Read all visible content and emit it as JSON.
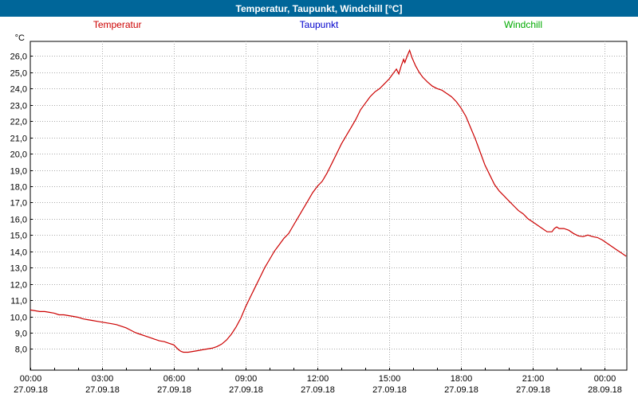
{
  "colors": {
    "titlebar_bg": "#006699",
    "grid": "#aaaaaa",
    "frame": "#000000",
    "plot_bg": "#ffffff"
  },
  "title_bar": {
    "title": "Temperatur, Taupunkt, Windchill [°C]"
  },
  "legend": [
    {
      "label": "Temperatur",
      "color": "#cc0000"
    },
    {
      "label": "Taupunkt",
      "color": "#0000cc"
    },
    {
      "label": "Windchill",
      "color": "#00aa00"
    }
  ],
  "chart_data": {
    "type": "line",
    "title": "Temperatur, Taupunkt, Windchill [°C]",
    "xlabel": "",
    "ylabel": "°C",
    "ylim": [
      6.7,
      26.9
    ],
    "xlim_hours": [
      0,
      24.93
    ],
    "grid": true,
    "legend_position": "top",
    "y_tick_labels": [
      "26,0",
      "25,0",
      "24,0",
      "23,0",
      "22,0",
      "21,0",
      "20,0",
      "19,0",
      "18,0",
      "17,0",
      "16,0",
      "15,0",
      "14,0",
      "13,0",
      "12,0",
      "11,0",
      "10,0",
      "9,0",
      "8,0"
    ],
    "x_ticks": [
      {
        "hour": 0,
        "time": "00:00",
        "date": "27.09.18"
      },
      {
        "hour": 3,
        "time": "03:00",
        "date": "27.09.18"
      },
      {
        "hour": 6,
        "time": "06:00",
        "date": "27.09.18"
      },
      {
        "hour": 9,
        "time": "09:00",
        "date": "27.09.18"
      },
      {
        "hour": 12,
        "time": "12:00",
        "date": "27.09.18"
      },
      {
        "hour": 15,
        "time": "15:00",
        "date": "27.09.18"
      },
      {
        "hour": 18,
        "time": "18:00",
        "date": "27.09.18"
      },
      {
        "hour": 21,
        "time": "21:00",
        "date": "27.09.18"
      },
      {
        "hour": 24,
        "time": "00:00",
        "date": "28.09.18"
      }
    ],
    "series": [
      {
        "name": "Temperatur",
        "color": "#cc0000",
        "points": [
          [
            0,
            10.4
          ],
          [
            0.2,
            10.35
          ],
          [
            0.4,
            10.3
          ],
          [
            0.6,
            10.3
          ],
          [
            0.8,
            10.25
          ],
          [
            1,
            10.2
          ],
          [
            1.2,
            10.1
          ],
          [
            1.4,
            10.1
          ],
          [
            1.6,
            10.05
          ],
          [
            1.8,
            10.0
          ],
          [
            2,
            9.95
          ],
          [
            2.2,
            9.85
          ],
          [
            2.4,
            9.8
          ],
          [
            2.6,
            9.75
          ],
          [
            2.8,
            9.7
          ],
          [
            3,
            9.65
          ],
          [
            3.2,
            9.6
          ],
          [
            3.4,
            9.55
          ],
          [
            3.6,
            9.5
          ],
          [
            3.8,
            9.4
          ],
          [
            4,
            9.3
          ],
          [
            4.2,
            9.15
          ],
          [
            4.4,
            9.0
          ],
          [
            4.6,
            8.9
          ],
          [
            4.8,
            8.8
          ],
          [
            5,
            8.7
          ],
          [
            5.2,
            8.6
          ],
          [
            5.4,
            8.5
          ],
          [
            5.6,
            8.45
          ],
          [
            5.8,
            8.35
          ],
          [
            6,
            8.25
          ],
          [
            6.1,
            8.1
          ],
          [
            6.2,
            7.95
          ],
          [
            6.3,
            7.85
          ],
          [
            6.4,
            7.8
          ],
          [
            6.6,
            7.8
          ],
          [
            6.8,
            7.85
          ],
          [
            7,
            7.9
          ],
          [
            7.2,
            7.95
          ],
          [
            7.4,
            8.0
          ],
          [
            7.6,
            8.05
          ],
          [
            7.8,
            8.15
          ],
          [
            8,
            8.3
          ],
          [
            8.2,
            8.55
          ],
          [
            8.4,
            8.9
          ],
          [
            8.6,
            9.35
          ],
          [
            8.8,
            9.9
          ],
          [
            9,
            10.6
          ],
          [
            9.2,
            11.2
          ],
          [
            9.4,
            11.8
          ],
          [
            9.6,
            12.4
          ],
          [
            9.8,
            13.0
          ],
          [
            10,
            13.5
          ],
          [
            10.2,
            14.0
          ],
          [
            10.4,
            14.4
          ],
          [
            10.6,
            14.8
          ],
          [
            10.8,
            15.1
          ],
          [
            11,
            15.6
          ],
          [
            11.2,
            16.1
          ],
          [
            11.4,
            16.6
          ],
          [
            11.6,
            17.1
          ],
          [
            11.8,
            17.6
          ],
          [
            12,
            18.0
          ],
          [
            12.2,
            18.3
          ],
          [
            12.4,
            18.8
          ],
          [
            12.6,
            19.4
          ],
          [
            12.8,
            20.0
          ],
          [
            13,
            20.6
          ],
          [
            13.2,
            21.1
          ],
          [
            13.4,
            21.6
          ],
          [
            13.6,
            22.1
          ],
          [
            13.8,
            22.7
          ],
          [
            14,
            23.1
          ],
          [
            14.2,
            23.5
          ],
          [
            14.4,
            23.8
          ],
          [
            14.6,
            24.0
          ],
          [
            14.8,
            24.3
          ],
          [
            15,
            24.6
          ],
          [
            15.1,
            24.8
          ],
          [
            15.2,
            25.0
          ],
          [
            15.3,
            25.2
          ],
          [
            15.4,
            24.9
          ],
          [
            15.5,
            25.4
          ],
          [
            15.6,
            25.8
          ],
          [
            15.65,
            25.6
          ],
          [
            15.75,
            26.0
          ],
          [
            15.85,
            26.35
          ],
          [
            15.95,
            25.9
          ],
          [
            16.1,
            25.4
          ],
          [
            16.25,
            25.0
          ],
          [
            16.4,
            24.7
          ],
          [
            16.6,
            24.4
          ],
          [
            16.8,
            24.15
          ],
          [
            17,
            24.0
          ],
          [
            17.2,
            23.9
          ],
          [
            17.4,
            23.7
          ],
          [
            17.6,
            23.5
          ],
          [
            17.8,
            23.2
          ],
          [
            18,
            22.8
          ],
          [
            18.2,
            22.3
          ],
          [
            18.4,
            21.6
          ],
          [
            18.6,
            20.9
          ],
          [
            18.8,
            20.1
          ],
          [
            19,
            19.3
          ],
          [
            19.2,
            18.7
          ],
          [
            19.4,
            18.1
          ],
          [
            19.6,
            17.7
          ],
          [
            19.8,
            17.4
          ],
          [
            20,
            17.1
          ],
          [
            20.2,
            16.8
          ],
          [
            20.4,
            16.5
          ],
          [
            20.6,
            16.3
          ],
          [
            20.8,
            16.0
          ],
          [
            21,
            15.8
          ],
          [
            21.2,
            15.6
          ],
          [
            21.4,
            15.4
          ],
          [
            21.6,
            15.2
          ],
          [
            21.8,
            15.2
          ],
          [
            21.9,
            15.4
          ],
          [
            22,
            15.5
          ],
          [
            22.1,
            15.4
          ],
          [
            22.3,
            15.4
          ],
          [
            22.5,
            15.3
          ],
          [
            22.7,
            15.1
          ],
          [
            22.9,
            14.95
          ],
          [
            23.1,
            14.9
          ],
          [
            23.3,
            15.0
          ],
          [
            23.5,
            14.9
          ],
          [
            23.7,
            14.85
          ],
          [
            23.9,
            14.7
          ],
          [
            24.1,
            14.5
          ],
          [
            24.3,
            14.3
          ],
          [
            24.5,
            14.1
          ],
          [
            24.7,
            13.9
          ],
          [
            24.9,
            13.7
          ]
        ]
      },
      {
        "name": "Taupunkt",
        "color": "#0000cc",
        "points": []
      },
      {
        "name": "Windchill",
        "color": "#00aa00",
        "points": []
      }
    ]
  }
}
